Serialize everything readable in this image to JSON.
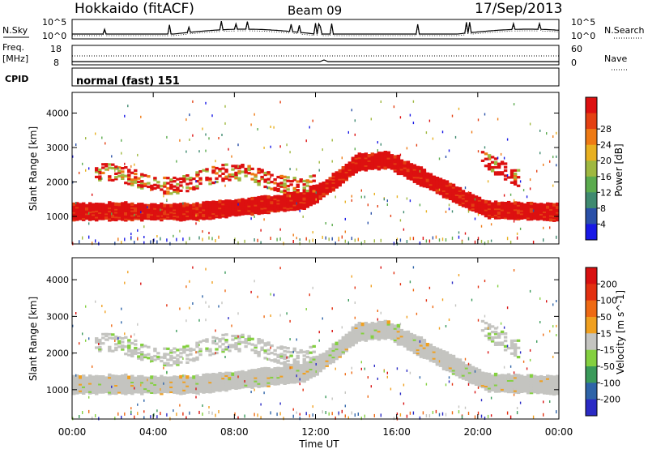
{
  "header": {
    "station": "Hokkaido (fitACF)",
    "beam": "Beam 09",
    "date": "17/Sep/2013"
  },
  "noise_panel": {
    "left_label": "N.Sky",
    "right_label": "N.Search",
    "tick_top": "10^5",
    "tick_bottom": "10^0"
  },
  "freq_panel": {
    "left_label_1": "Freq.",
    "left_label_2": "[MHz]",
    "right_label": "Nave",
    "left_ticks": [
      "18",
      "8"
    ],
    "right_ticks": [
      "60",
      "0"
    ]
  },
  "cpid": {
    "label": "CPID",
    "value": "normal (fast) 151"
  },
  "chart_data": [
    {
      "type": "heatmap",
      "name": "power",
      "ylabel": "Slant Range [km]",
      "yticks": [
        "1000",
        "2000",
        "3000",
        "4000"
      ],
      "ylim": [
        200,
        4600
      ],
      "colorbar_label": "Power [dB]",
      "colorbar_ticks": [
        "4",
        "8",
        "12",
        "16",
        "20",
        "24",
        "28"
      ],
      "colors": [
        "#1818e6",
        "#2a50a8",
        "#3f8a70",
        "#5bab4e",
        "#9fb840",
        "#e8b020",
        "#ee7a14",
        "#e44012",
        "#dd1010"
      ]
    },
    {
      "type": "heatmap",
      "name": "velocity",
      "ylabel": "Slant Range [km]",
      "yticks": [
        "1000",
        "2000",
        "3000",
        "4000"
      ],
      "ylim": [
        200,
        4600
      ],
      "colorbar_label": "Velocity [m s^-1]",
      "colorbar_ticks": [
        "200",
        "100",
        "50",
        "15",
        "-15",
        "-50",
        "-100",
        "-200"
      ],
      "colors": [
        "#2a2ac4",
        "#2e64a8",
        "#3a9a5a",
        "#84d040",
        "#c4c4c0",
        "#f0a020",
        "#ee6a14",
        "#e23010",
        "#d81010"
      ],
      "ground_scatter_color": "#c4c4c0"
    }
  ],
  "x_axis": {
    "label": "Time UT",
    "ticks": [
      "00:00",
      "04:00",
      "08:00",
      "12:00",
      "16:00",
      "20:00",
      "00:00"
    ]
  }
}
